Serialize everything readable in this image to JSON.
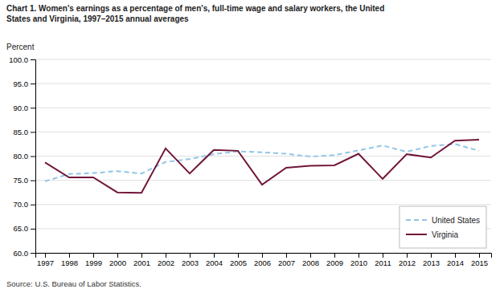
{
  "chart_data": {
    "type": "line",
    "title": "Chart 1. Women's earnings as a percentage of men's, full-time wage and salary workers, the United\nStates and Virginia,  1997–2015 annual averages",
    "ylabel": "Percent",
    "annotations": [
      "Source:  U.S. Bureau of Labor Statistics."
    ],
    "x": [
      1997,
      1998,
      1999,
      2000,
      2001,
      2002,
      2003,
      2004,
      2005,
      2006,
      2007,
      2008,
      2009,
      2010,
      2011,
      2012,
      2013,
      2014,
      2015
    ],
    "series": [
      {
        "name": "United States",
        "color": "#92C5E8",
        "line_style": "dashed",
        "values": [
          74.8,
          76.3,
          76.5,
          76.9,
          76.4,
          78.8,
          79.4,
          80.4,
          81.0,
          80.8,
          80.5,
          79.9,
          80.2,
          81.2,
          82.2,
          80.9,
          82.1,
          82.5,
          81.1
        ]
      },
      {
        "name": "Virginia",
        "color": "#72163A",
        "line_style": "solid",
        "values": [
          78.7,
          75.6,
          75.6,
          72.5,
          72.4,
          81.6,
          76.4,
          81.3,
          81.1,
          74.1,
          77.6,
          78.0,
          78.1,
          80.5,
          75.3,
          80.4,
          79.7,
          83.2,
          83.4
        ]
      }
    ],
    "xlim": [
      1996.6,
      2015.5
    ],
    "xticks": [
      1997,
      1998,
      1999,
      2000,
      2001,
      2002,
      2003,
      2004,
      2005,
      2006,
      2007,
      2008,
      2009,
      2010,
      2011,
      2012,
      2013,
      2014,
      2015
    ],
    "ylim": [
      60.0,
      100.0
    ],
    "yticks": [
      {
        "value": 60.0,
        "label": "60.0"
      },
      {
        "value": 65.0,
        "label": "65.0"
      },
      {
        "value": 70.0,
        "label": "70.0"
      },
      {
        "value": 75.0,
        "label": "75.0"
      },
      {
        "value": 80.0,
        "label": "80.0"
      },
      {
        "value": 85.0,
        "label": "85.0"
      },
      {
        "value": 90.0,
        "label": "90.0"
      },
      {
        "value": 95.0,
        "label": "95.0"
      },
      {
        "value": 100.0,
        "label": "100.0"
      }
    ],
    "grid": true,
    "legend": "lower right"
  }
}
